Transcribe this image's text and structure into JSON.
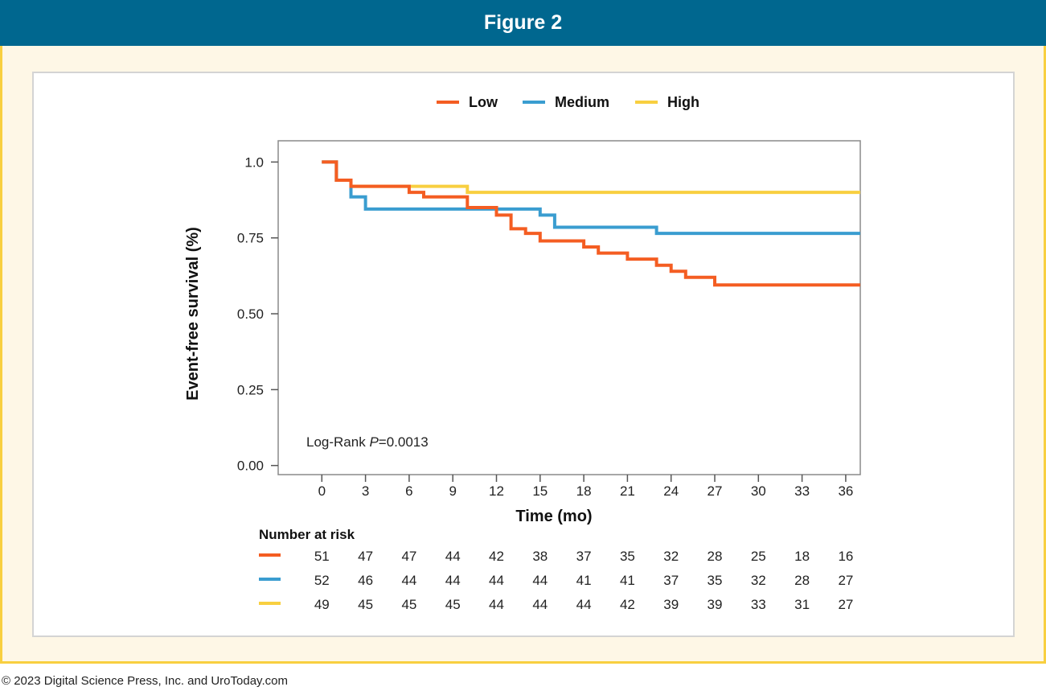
{
  "header": {
    "title": "Figure 2"
  },
  "footer": {
    "copyright": "© 2023 Digital Science Press, Inc. and UroToday.com"
  },
  "chart_data": {
    "type": "line",
    "subtype": "kaplan-meier step",
    "xlabel": "Time (mo)",
    "ylabel": "Event-free survival (%)",
    "xlim": [
      -3,
      37
    ],
    "ylim": [
      -0.03,
      1.07
    ],
    "xticks": [
      0,
      3,
      6,
      9,
      12,
      15,
      18,
      21,
      24,
      27,
      30,
      33,
      36
    ],
    "yticks": [
      0.0,
      0.25,
      0.5,
      0.75,
      1.0
    ],
    "ytick_labels": [
      "0.00",
      "0.25",
      "0.50",
      "0.75",
      "1.0"
    ],
    "legend": {
      "placement": "top-center",
      "entries": [
        "Low",
        "Medium",
        "High"
      ]
    },
    "annotation": {
      "prefix": "Log-Rank ",
      "italic": "P",
      "suffix": "=0.0013"
    },
    "series": [
      {
        "name": "Low",
        "color": "#f45d22",
        "x": [
          0,
          1,
          1,
          2,
          2,
          6,
          6,
          7,
          7,
          10,
          10,
          12,
          12,
          13,
          13,
          14,
          14,
          15,
          15,
          18,
          18,
          19,
          19,
          21,
          21,
          23,
          23,
          24,
          24,
          25,
          25,
          27,
          27,
          37
        ],
        "y": [
          1.0,
          1.0,
          0.94,
          0.94,
          0.92,
          0.92,
          0.9,
          0.9,
          0.885,
          0.885,
          0.85,
          0.85,
          0.825,
          0.825,
          0.78,
          0.78,
          0.765,
          0.765,
          0.74,
          0.74,
          0.72,
          0.72,
          0.7,
          0.7,
          0.68,
          0.68,
          0.66,
          0.66,
          0.64,
          0.64,
          0.62,
          0.62,
          0.595,
          0.595
        ]
      },
      {
        "name": "Medium",
        "color": "#3a9dd0",
        "x": [
          0,
          1,
          1,
          2,
          2,
          3,
          3,
          15,
          15,
          16,
          16,
          23,
          23,
          37
        ],
        "y": [
          1.0,
          1.0,
          0.94,
          0.94,
          0.885,
          0.885,
          0.845,
          0.845,
          0.825,
          0.825,
          0.785,
          0.785,
          0.765,
          0.765
        ]
      },
      {
        "name": "High",
        "color": "#f8cf40",
        "x": [
          0,
          1,
          1,
          2,
          2,
          10,
          10,
          37
        ],
        "y": [
          1.0,
          1.0,
          0.94,
          0.94,
          0.92,
          0.92,
          0.9,
          0.9
        ]
      }
    ],
    "risk_table": {
      "title": "Number at risk",
      "rows": [
        {
          "name": "Low",
          "color": "#f45d22",
          "values": [
            51,
            47,
            47,
            44,
            42,
            38,
            37,
            35,
            32,
            28,
            25,
            18,
            16
          ]
        },
        {
          "name": "Medium",
          "color": "#3a9dd0",
          "values": [
            52,
            46,
            44,
            44,
            44,
            44,
            41,
            41,
            37,
            35,
            32,
            28,
            27
          ]
        },
        {
          "name": "High",
          "color": "#f8cf40",
          "values": [
            49,
            45,
            45,
            45,
            44,
            44,
            44,
            42,
            39,
            39,
            33,
            31,
            27
          ]
        }
      ]
    }
  }
}
